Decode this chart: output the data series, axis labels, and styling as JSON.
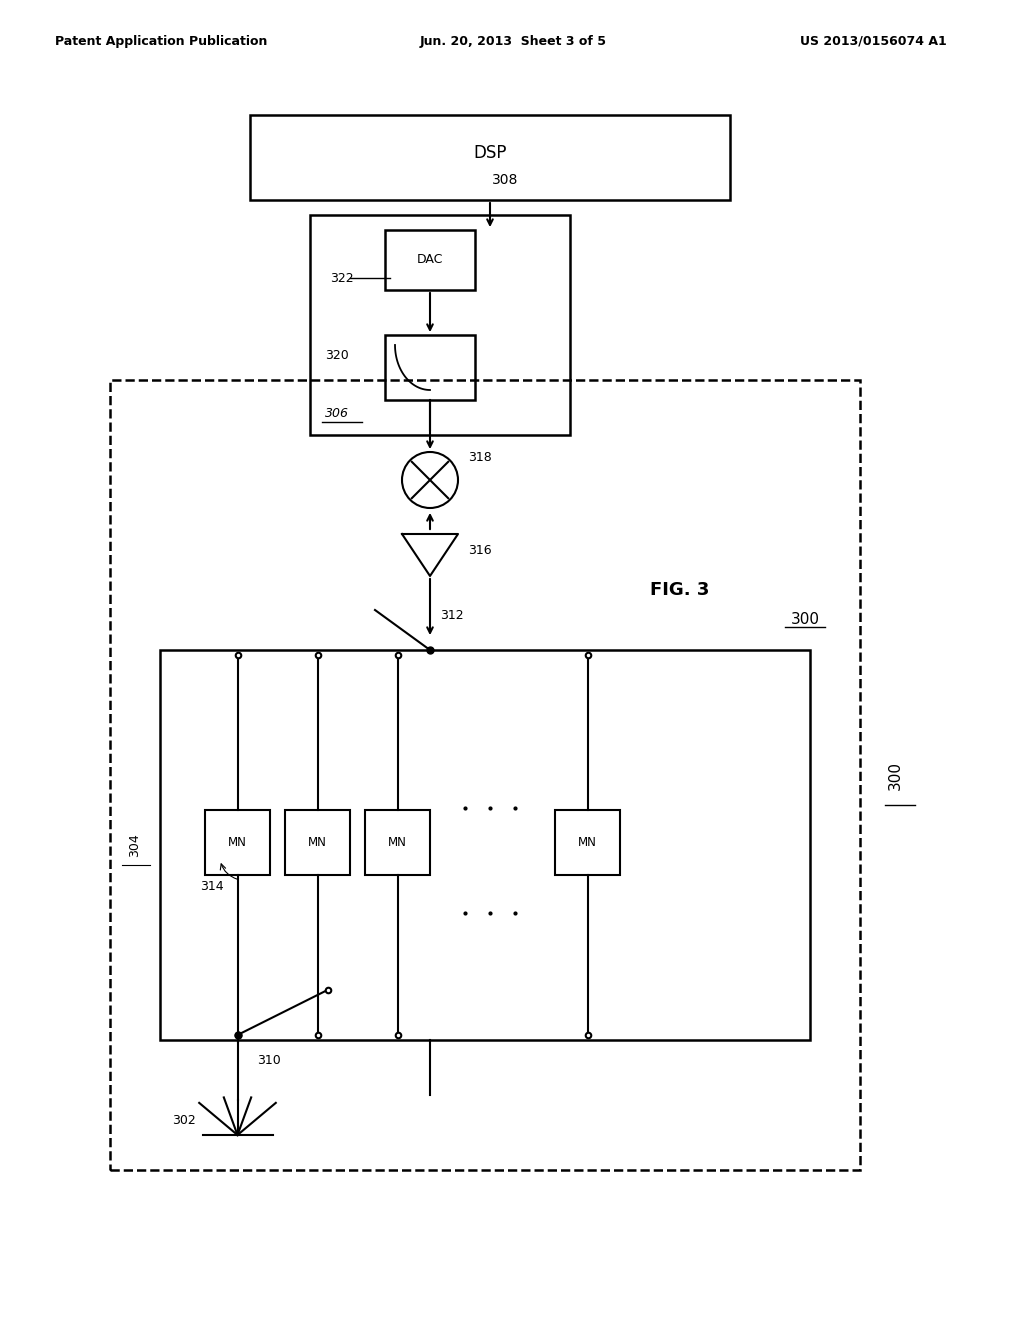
{
  "title_left": "Patent Application Publication",
  "title_mid": "Jun. 20, 2013  Sheet 3 of 5",
  "title_right": "US 2013/0156074 A1",
  "fig_label": "FIG. 3",
  "fig_number": "300",
  "background": "#ffffff",
  "text_color": "#000000",
  "labels": {
    "DSP": "DSP\n308",
    "DAC": "DAC",
    "DAC_num": "322",
    "filter": "320",
    "filter_num": "306",
    "mixer": "318",
    "amp": "316",
    "switch_top": "312",
    "switch_bot": "310",
    "MN": "MN",
    "MN_num": "314",
    "antenna": "302",
    "inner_box": "304"
  }
}
